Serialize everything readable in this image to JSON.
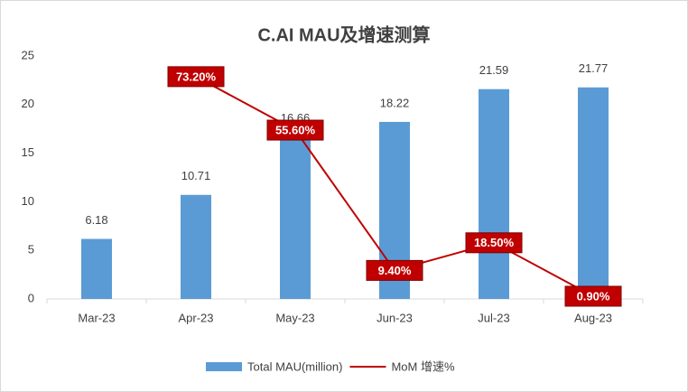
{
  "chart_data": {
    "type": "bar_line",
    "title": "C.AI MAU及增速测算",
    "categories": [
      "Mar-23",
      "Apr-23",
      "May-23",
      "Jun-23",
      "Jul-23",
      "Aug-23"
    ],
    "series": [
      {
        "name": "Total MAU(million)",
        "color": "#5b9bd5",
        "type": "bar",
        "values": [
          6.18,
          10.71,
          16.66,
          18.22,
          21.59,
          21.77
        ]
      },
      {
        "name": "MoM 增速%",
        "color": "#c00000",
        "type": "line",
        "axis": "y2",
        "values": [
          null,
          73.2,
          55.6,
          9.4,
          18.5,
          0.9
        ],
        "value_labels": [
          null,
          "73.20%",
          "55.60%",
          "9.40%",
          "18.50%",
          "0.90%"
        ]
      }
    ],
    "ylim": [
      0,
      25
    ],
    "yticks": [
      0,
      5,
      10,
      15,
      20,
      25
    ],
    "y2lim": [
      0,
      80
    ],
    "grid": false,
    "legend": "bottom"
  }
}
